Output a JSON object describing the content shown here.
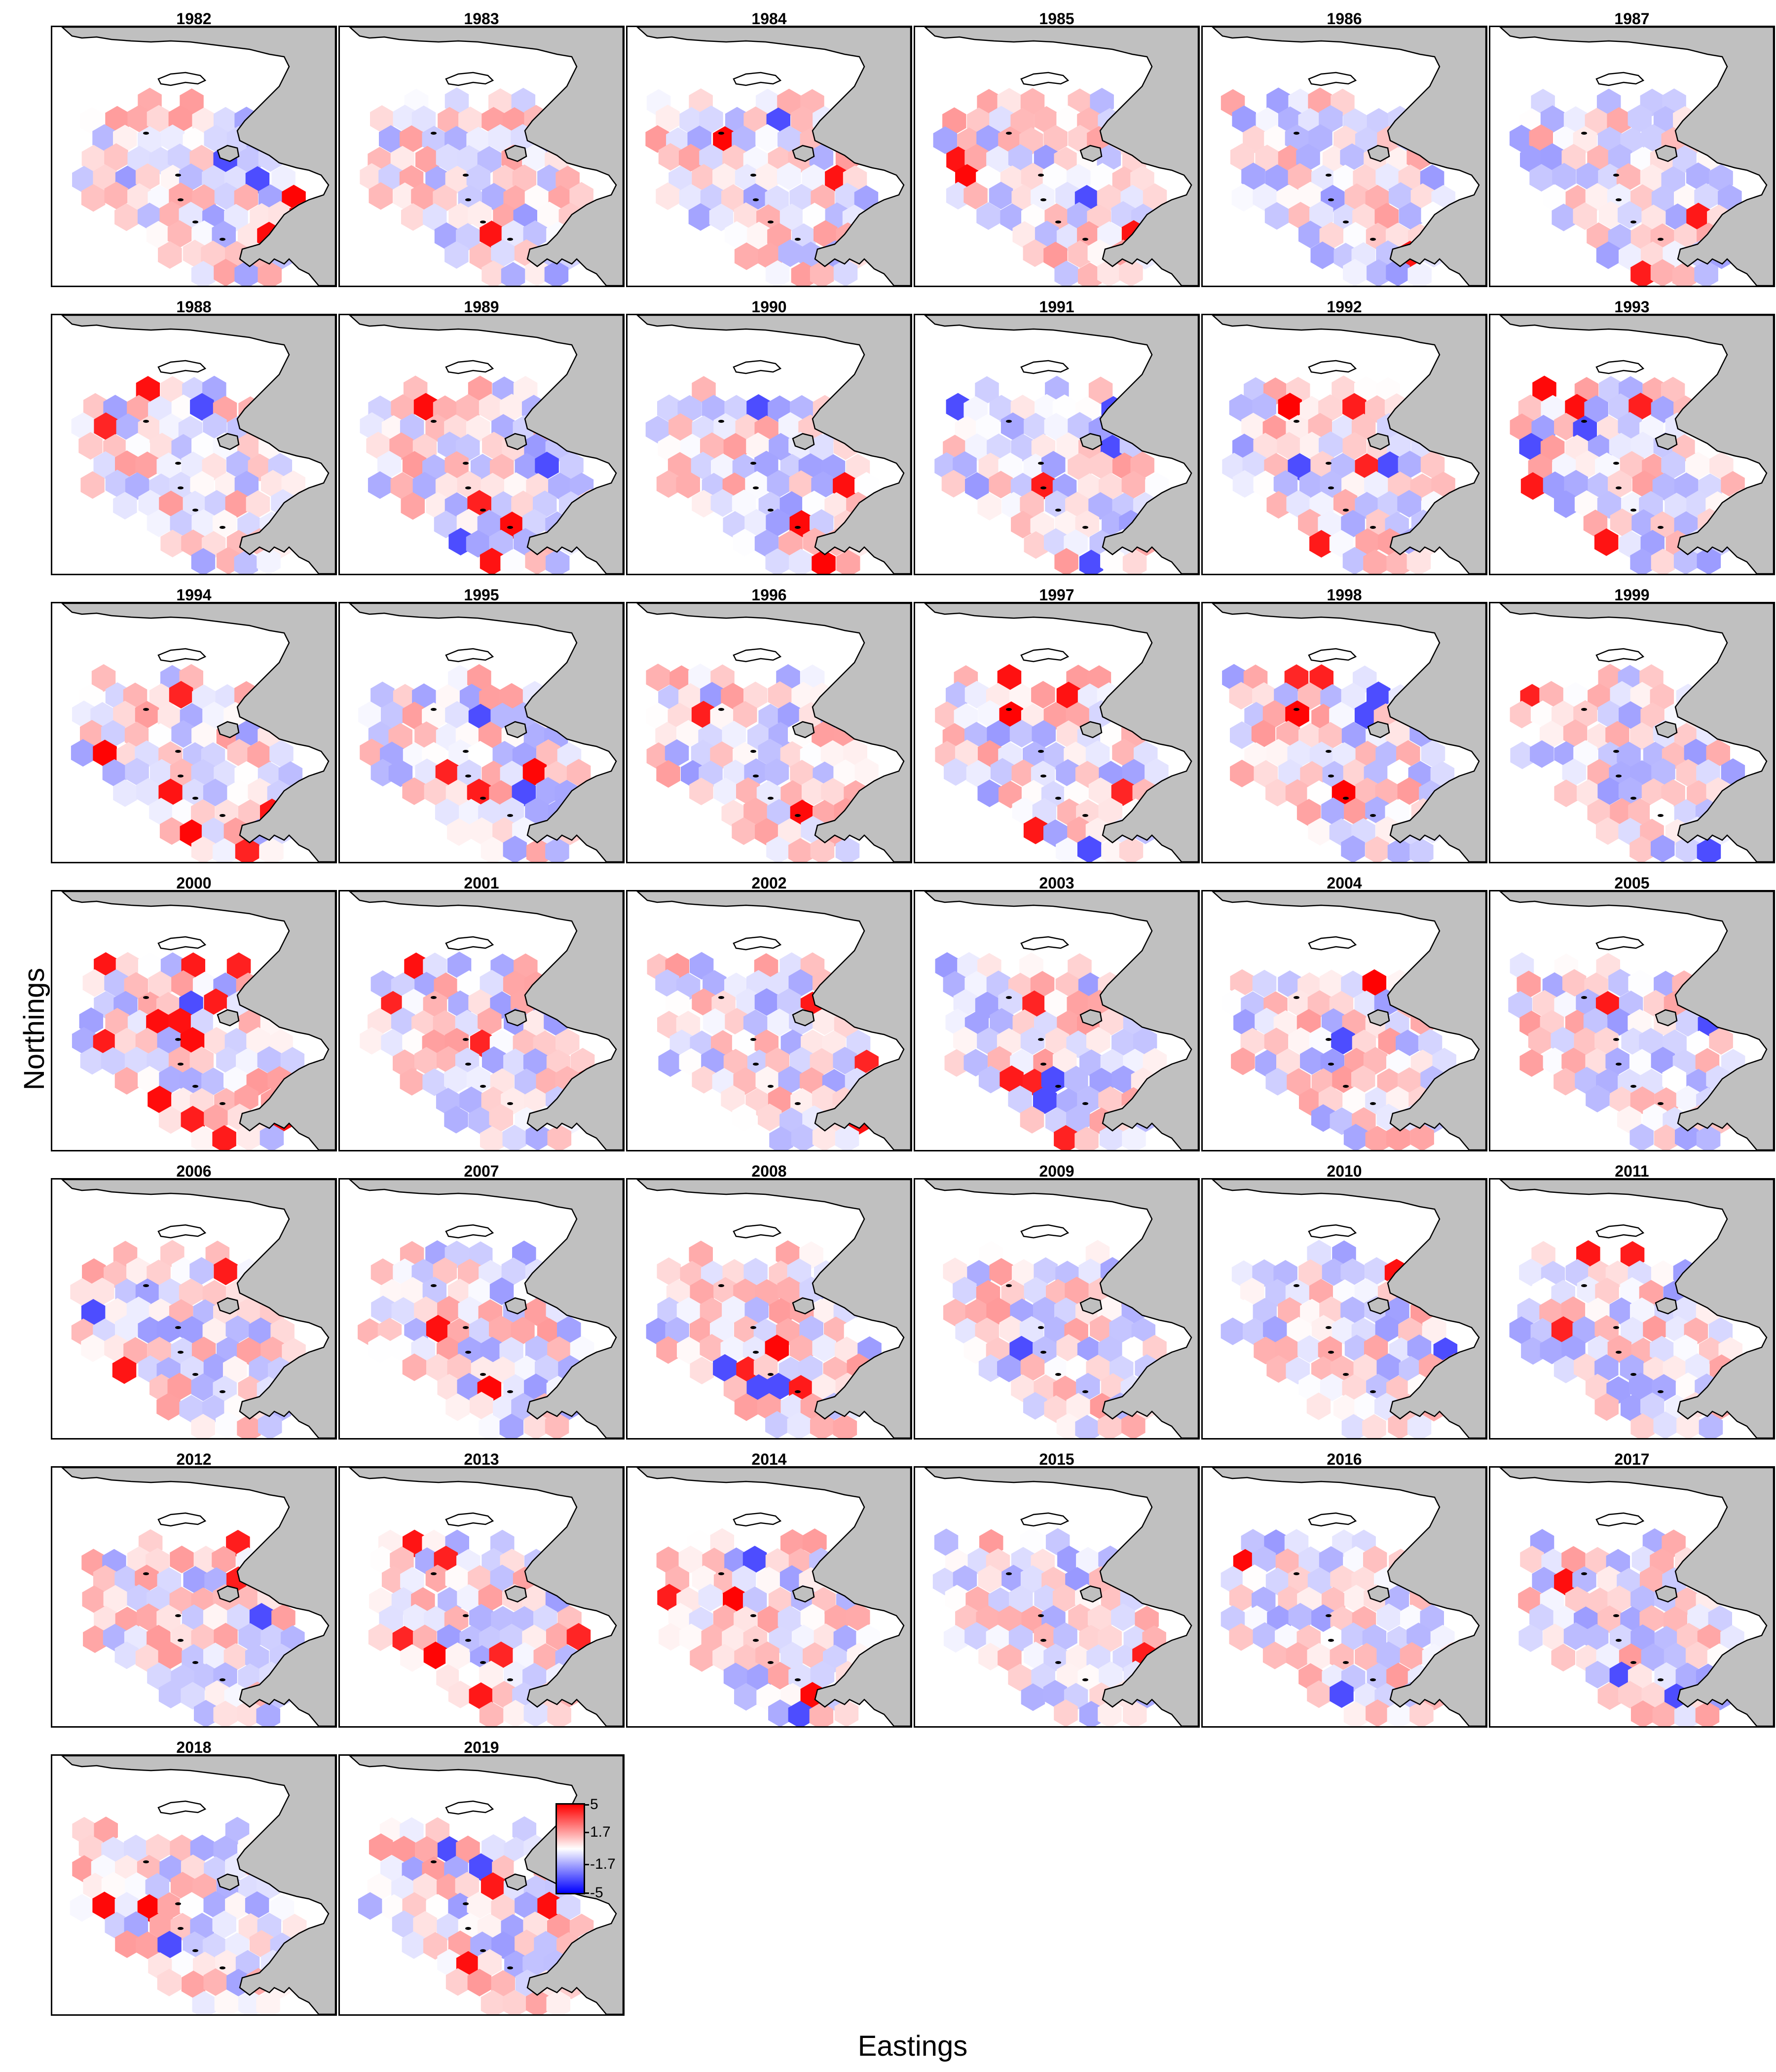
{
  "figure": {
    "ylabel": "Northings",
    "xlabel": "Eastings"
  },
  "colors": {
    "land": "#c0c0c0",
    "coast": "#000000",
    "scale_high": "#ff0000",
    "scale_mid": "#ffffff",
    "scale_low": "#0000ff"
  },
  "legend": {
    "tick_labels": [
      "5",
      "1.7",
      "-1.7",
      "-5"
    ],
    "range": [
      -5,
      5
    ]
  },
  "panels": [
    {
      "year": "1982"
    },
    {
      "year": "1983"
    },
    {
      "year": "1984"
    },
    {
      "year": "1985"
    },
    {
      "year": "1986"
    },
    {
      "year": "1987"
    },
    {
      "year": "1988"
    },
    {
      "year": "1989"
    },
    {
      "year": "1990"
    },
    {
      "year": "1991"
    },
    {
      "year": "1992"
    },
    {
      "year": "1993"
    },
    {
      "year": "1994"
    },
    {
      "year": "1995"
    },
    {
      "year": "1996"
    },
    {
      "year": "1997"
    },
    {
      "year": "1998"
    },
    {
      "year": "1999"
    },
    {
      "year": "2000"
    },
    {
      "year": "2001"
    },
    {
      "year": "2002"
    },
    {
      "year": "2003"
    },
    {
      "year": "2004"
    },
    {
      "year": "2005"
    },
    {
      "year": "2006"
    },
    {
      "year": "2007"
    },
    {
      "year": "2008"
    },
    {
      "year": "2009"
    },
    {
      "year": "2010"
    },
    {
      "year": "2011"
    },
    {
      "year": "2012"
    },
    {
      "year": "2013"
    },
    {
      "year": "2014"
    },
    {
      "year": "2015"
    },
    {
      "year": "2016"
    },
    {
      "year": "2017"
    },
    {
      "year": "2018"
    },
    {
      "year": "2019"
    }
  ]
}
